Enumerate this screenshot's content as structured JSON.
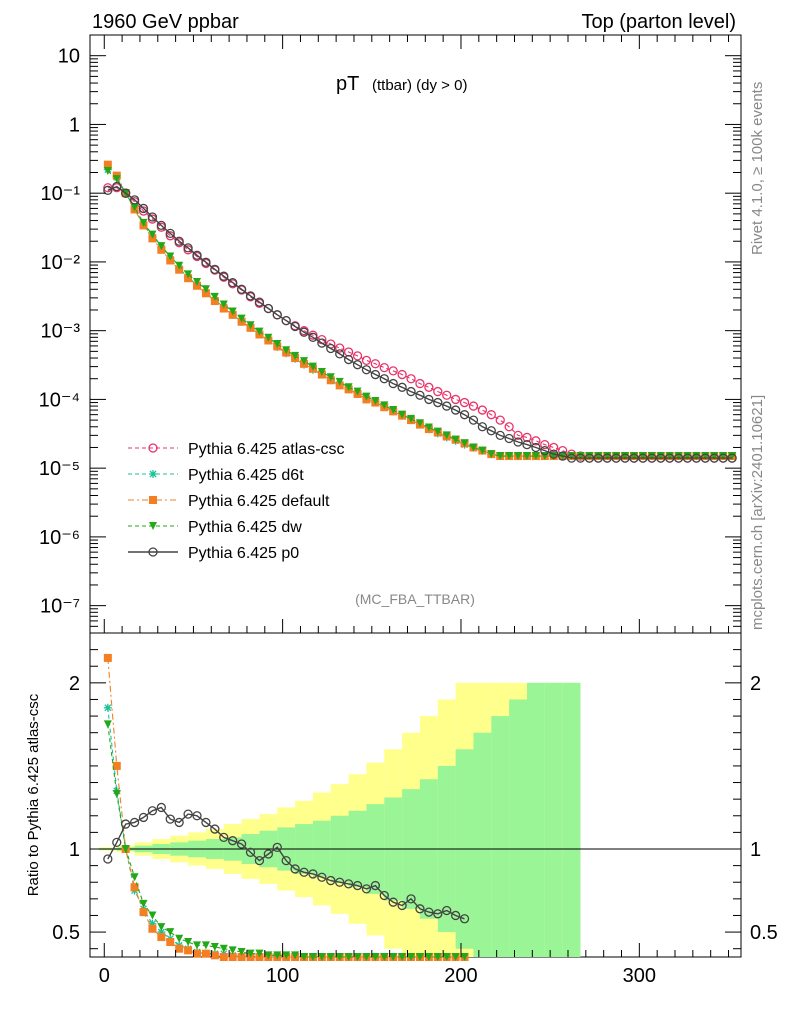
{
  "header": {
    "left": "1960 GeV ppbar",
    "right": "Top (parton level)"
  },
  "side": {
    "rivet": "Rivet 4.1.0, ≥ 100k events",
    "mcplots": "mcplots.cern.ch [arXiv:2401.10621]"
  },
  "chart_data": {
    "type": "line",
    "title": "pT (ttbar) (dy > 0)",
    "title_main": "pT",
    "title_sub": "(ttbar) (dy > 0)",
    "analysis": "(MC_FBA_TTBAR)",
    "xlabel": "",
    "xlim": [
      -8,
      357
    ],
    "xticks": [
      "0",
      "100",
      "200",
      "300"
    ],
    "upper": {
      "yscale": "log",
      "ylim": [
        4e-08,
        20
      ],
      "yticks": [
        "10",
        "1",
        "10⁻¹",
        "10⁻²",
        "10⁻³",
        "10⁻⁴",
        "10⁻⁵",
        "10⁻⁶",
        "10⁻⁷"
      ],
      "x": [
        2,
        7,
        12,
        17,
        22,
        27,
        32,
        37,
        42,
        47,
        52,
        57,
        62,
        67,
        72,
        77,
        82,
        87,
        92,
        97,
        102,
        107,
        112,
        117,
        122,
        127,
        132,
        137,
        142,
        147,
        152,
        157,
        162,
        167,
        172,
        177,
        182,
        187,
        192,
        197,
        202,
        207,
        212,
        217,
        222,
        227,
        232,
        237,
        242,
        247,
        252,
        257,
        262,
        267,
        272,
        277,
        282,
        287,
        292,
        297,
        302,
        307,
        312,
        317,
        322,
        327,
        332,
        337,
        342,
        347,
        352
      ],
      "series": [
        {
          "name": "Pythia 6.425 atlas-csc",
          "color": "#e8336a",
          "marker": "circle-open",
          "values": [
            0.12,
            0.12,
            0.1,
            0.075,
            0.055,
            0.042,
            0.032,
            0.024,
            0.019,
            0.015,
            0.012,
            0.0095,
            0.0076,
            0.006,
            0.0048,
            0.0039,
            0.0031,
            0.0025,
            0.0021,
            0.0017,
            0.0014,
            0.00118,
            0.001,
            0.00086,
            0.00074,
            0.00064,
            0.00056,
            0.00049,
            0.00043,
            0.00037,
            0.00033,
            0.00029,
            0.00026,
            0.00023,
            0.0002,
            0.00017,
            0.00015,
            0.00013,
            0.000115,
            0.0001,
            9e-05,
            8e-05,
            7e-05,
            6e-05,
            5e-05,
            4e-05,
            3e-05,
            2.8e-05,
            2.5e-05,
            2.2e-05,
            2e-05,
            1.8e-05,
            1.6e-05,
            1.5e-05,
            1.4e-05,
            1.4e-05,
            1.4e-05,
            1.4e-05,
            1.4e-05,
            1.4e-05,
            1.4e-05,
            1.4e-05,
            1.4e-05,
            1.4e-05,
            1.4e-05,
            1.4e-05,
            1.4e-05,
            1.4e-05,
            1.4e-05,
            1.4e-05,
            1.4e-05
          ]
        },
        {
          "name": "Pythia 6.425 d6t",
          "color": "#19c29a",
          "marker": "star",
          "values": [
            0.22,
            0.17,
            0.1,
            0.06,
            0.035,
            0.023,
            0.016,
            0.011,
            0.008,
            0.006,
            0.0046,
            0.0036,
            0.0028,
            0.0022,
            0.0017,
            0.00135,
            0.0011,
            0.00088,
            0.00072,
            0.00058,
            0.00047,
            0.00039,
            0.00032,
            0.00027,
            0.00023,
            0.00019,
            0.00016,
            0.00014,
            0.00012,
            0.0001,
            9e-05,
            7.8e-05,
            6.7e-05,
            5.8e-05,
            5e-05,
            4.3e-05,
            3.7e-05,
            3.2e-05,
            2.8e-05,
            2.5e-05,
            2.2e-05,
            2e-05,
            1.8e-05,
            1.6e-05,
            1.5e-05,
            1.5e-05,
            1.5e-05,
            1.5e-05,
            1.5e-05,
            1.5e-05,
            1.5e-05,
            1.5e-05,
            1.5e-05,
            1.5e-05,
            1.5e-05,
            1.5e-05,
            1.5e-05,
            1.5e-05,
            1.5e-05,
            1.5e-05,
            1.5e-05,
            1.5e-05,
            1.5e-05,
            1.5e-05,
            1.5e-05,
            1.5e-05,
            1.5e-05,
            1.5e-05,
            1.5e-05,
            1.5e-05,
            1.5e-05
          ]
        },
        {
          "name": "Pythia 6.425 default",
          "color": "#f47f22",
          "marker": "square",
          "values": [
            0.26,
            0.18,
            0.1,
            0.058,
            0.034,
            0.022,
            0.015,
            0.0105,
            0.0077,
            0.0058,
            0.0045,
            0.0035,
            0.0027,
            0.0021,
            0.0017,
            0.00135,
            0.0011,
            0.00088,
            0.00072,
            0.00059,
            0.00048,
            0.0004,
            0.00033,
            0.00028,
            0.00023,
            0.00019,
            0.00016,
            0.00014,
            0.00012,
            0.0001,
            9e-05,
            7.7e-05,
            6.7e-05,
            5.8e-05,
            5e-05,
            4.3e-05,
            3.7e-05,
            3.3e-05,
            2.9e-05,
            2.6e-05,
            2.3e-05,
            2e-05,
            1.8e-05,
            1.6e-05,
            1.5e-05,
            1.5e-05,
            1.5e-05,
            1.5e-05,
            1.5e-05,
            1.5e-05,
            1.5e-05,
            1.5e-05,
            1.5e-05,
            1.5e-05,
            1.5e-05,
            1.5e-05,
            1.5e-05,
            1.5e-05,
            1.5e-05,
            1.5e-05,
            1.5e-05,
            1.5e-05,
            1.5e-05,
            1.5e-05,
            1.5e-05,
            1.5e-05,
            1.5e-05,
            1.5e-05,
            1.5e-05,
            1.5e-05,
            1.5e-05
          ]
        },
        {
          "name": "Pythia 6.425 dw",
          "color": "#22a819",
          "marker": "triangle-down",
          "values": [
            0.21,
            0.16,
            0.1,
            0.062,
            0.037,
            0.025,
            0.017,
            0.012,
            0.0088,
            0.0066,
            0.0051,
            0.004,
            0.0031,
            0.0024,
            0.0019,
            0.0015,
            0.0012,
            0.00097,
            0.00079,
            0.00064,
            0.00052,
            0.00043,
            0.00036,
            0.0003,
            0.00025,
            0.00021,
            0.00018,
            0.00015,
            0.00013,
            0.00011,
            9.5e-05,
            8.2e-05,
            7e-05,
            6e-05,
            5.2e-05,
            4.5e-05,
            3.9e-05,
            3.4e-05,
            3e-05,
            2.6e-05,
            2.3e-05,
            2e-05,
            1.8e-05,
            1.6e-05,
            1.5e-05,
            1.5e-05,
            1.5e-05,
            1.5e-05,
            1.5e-05,
            1.5e-05,
            1.5e-05,
            1.5e-05,
            1.5e-05,
            1.5e-05,
            1.5e-05,
            1.5e-05,
            1.5e-05,
            1.5e-05,
            1.5e-05,
            1.5e-05,
            1.5e-05,
            1.5e-05,
            1.5e-05,
            1.5e-05,
            1.5e-05,
            1.5e-05,
            1.5e-05,
            1.5e-05,
            1.5e-05,
            1.5e-05,
            1.5e-05
          ]
        },
        {
          "name": "Pythia 6.425 p0",
          "color": "#444444",
          "marker": "circle-open",
          "values": [
            0.11,
            0.125,
            0.1,
            0.08,
            0.06,
            0.045,
            0.034,
            0.026,
            0.02,
            0.016,
            0.0125,
            0.0099,
            0.0078,
            0.0062,
            0.005,
            0.004,
            0.0032,
            0.0026,
            0.0021,
            0.0017,
            0.0014,
            0.00115,
            0.00095,
            0.0008,
            0.00066,
            0.00055,
            0.00046,
            0.00038,
            0.00032,
            0.00027,
            0.00023,
            0.0002,
            0.00017,
            0.00015,
            0.00013,
            0.000115,
            0.0001,
            9e-05,
            8e-05,
            7e-05,
            6e-05,
            5e-05,
            4e-05,
            3.5e-05,
            3e-05,
            2.7e-05,
            2.4e-05,
            2.2e-05,
            2e-05,
            1.8e-05,
            1.6e-05,
            1.5e-05,
            1.4e-05,
            1.4e-05,
            1.4e-05,
            1.4e-05,
            1.4e-05,
            1.4e-05,
            1.4e-05,
            1.4e-05,
            1.4e-05,
            1.4e-05,
            1.4e-05,
            1.4e-05,
            1.4e-05,
            1.4e-05,
            1.4e-05,
            1.4e-05,
            1.4e-05,
            1.4e-05,
            1.4e-05
          ]
        }
      ]
    },
    "ratio": {
      "ylabel": "Ratio to Pythia 6.425 atlas-csc",
      "ylim": [
        0.35,
        2.3
      ],
      "yticks": [
        "2",
        "1",
        "0.5"
      ],
      "band_x": [
        2,
        12,
        22,
        32,
        42,
        52,
        62,
        72,
        82,
        92,
        102,
        112,
        122,
        132,
        142,
        152,
        162,
        172,
        182,
        192,
        202,
        212,
        222,
        232,
        242,
        252,
        262
      ],
      "band_yellow": [
        0.01,
        0.02,
        0.04,
        0.06,
        0.08,
        0.1,
        0.12,
        0.15,
        0.18,
        0.21,
        0.25,
        0.29,
        0.34,
        0.39,
        0.45,
        0.52,
        0.6,
        0.7,
        0.8,
        0.9,
        1.0,
        1.0,
        1.0,
        1.0,
        1.0,
        1.0,
        1.0
      ],
      "band_green": [
        0.005,
        0.01,
        0.02,
        0.03,
        0.04,
        0.05,
        0.06,
        0.07,
        0.09,
        0.11,
        0.13,
        0.15,
        0.17,
        0.2,
        0.23,
        0.27,
        0.31,
        0.36,
        0.42,
        0.5,
        0.6,
        0.7,
        0.8,
        0.9,
        1.0,
        1.0,
        1.0
      ],
      "x": [
        2,
        7,
        12,
        17,
        22,
        27,
        32,
        37,
        42,
        47,
        52,
        57,
        62,
        67,
        72,
        77,
        82,
        87,
        92,
        97,
        102,
        107,
        112,
        117,
        122,
        127,
        132,
        137,
        142,
        147,
        152,
        157,
        162,
        167,
        172,
        177,
        182,
        187,
        192,
        197,
        202
      ],
      "series": [
        {
          "name": "Pythia 6.425 d6t",
          "color": "#19c29a",
          "marker": "star",
          "values": [
            1.85,
            1.35,
            1.0,
            0.75,
            0.64,
            0.55,
            0.5,
            0.46,
            0.42,
            0.4,
            0.38,
            0.37,
            0.37,
            0.37,
            0.36,
            0.35,
            0.35,
            0.35,
            0.35,
            0.34,
            0.34,
            0.34,
            0.34,
            0.34,
            0.34,
            0.34,
            0.34,
            0.34,
            0.34,
            0.34,
            0.34,
            0.34,
            0.34,
            0.34,
            0.34,
            0.34,
            0.34,
            0.34,
            0.34,
            0.34,
            0.34
          ]
        },
        {
          "name": "Pythia 6.425 default",
          "color": "#f47f22",
          "marker": "square",
          "values": [
            2.15,
            1.5,
            1.0,
            0.77,
            0.62,
            0.52,
            0.47,
            0.44,
            0.4,
            0.39,
            0.37,
            0.37,
            0.36,
            0.35,
            0.35,
            0.35,
            0.35,
            0.35,
            0.35,
            0.34,
            0.34,
            0.34,
            0.34,
            0.34,
            0.34,
            0.34,
            0.34,
            0.34,
            0.34,
            0.34,
            0.34,
            0.34,
            0.34,
            0.34,
            0.34,
            0.34,
            0.34,
            0.34,
            0.34,
            0.34,
            0.34
          ]
        },
        {
          "name": "Pythia 6.425 dw",
          "color": "#22a819",
          "marker": "triangle-down",
          "values": [
            1.75,
            1.33,
            1.0,
            0.83,
            0.67,
            0.6,
            0.53,
            0.5,
            0.46,
            0.44,
            0.42,
            0.42,
            0.41,
            0.4,
            0.39,
            0.38,
            0.37,
            0.37,
            0.36,
            0.36,
            0.36,
            0.36,
            0.35,
            0.35,
            0.35,
            0.35,
            0.35,
            0.35,
            0.35,
            0.35,
            0.35,
            0.35,
            0.35,
            0.35,
            0.35,
            0.35,
            0.35,
            0.35,
            0.35,
            0.35,
            0.35
          ]
        },
        {
          "name": "Pythia 6.425 p0",
          "color": "#444444",
          "marker": "circle-open",
          "values": [
            0.94,
            1.04,
            1.15,
            1.16,
            1.19,
            1.23,
            1.25,
            1.18,
            1.16,
            1.21,
            1.2,
            1.16,
            1.12,
            1.07,
            1.05,
            1.03,
            0.98,
            0.93,
            0.97,
            1.01,
            0.93,
            0.88,
            0.86,
            0.85,
            0.83,
            0.81,
            0.8,
            0.79,
            0.78,
            0.76,
            0.78,
            0.72,
            0.68,
            0.66,
            0.7,
            0.64,
            0.62,
            0.61,
            0.63,
            0.6,
            0.58
          ]
        }
      ]
    },
    "legend": [
      "Pythia 6.425 atlas-csc",
      "Pythia 6.425 d6t",
      "Pythia 6.425 default",
      "Pythia 6.425 dw",
      "Pythia 6.425 p0"
    ],
    "legend_position": "bottom-left"
  }
}
